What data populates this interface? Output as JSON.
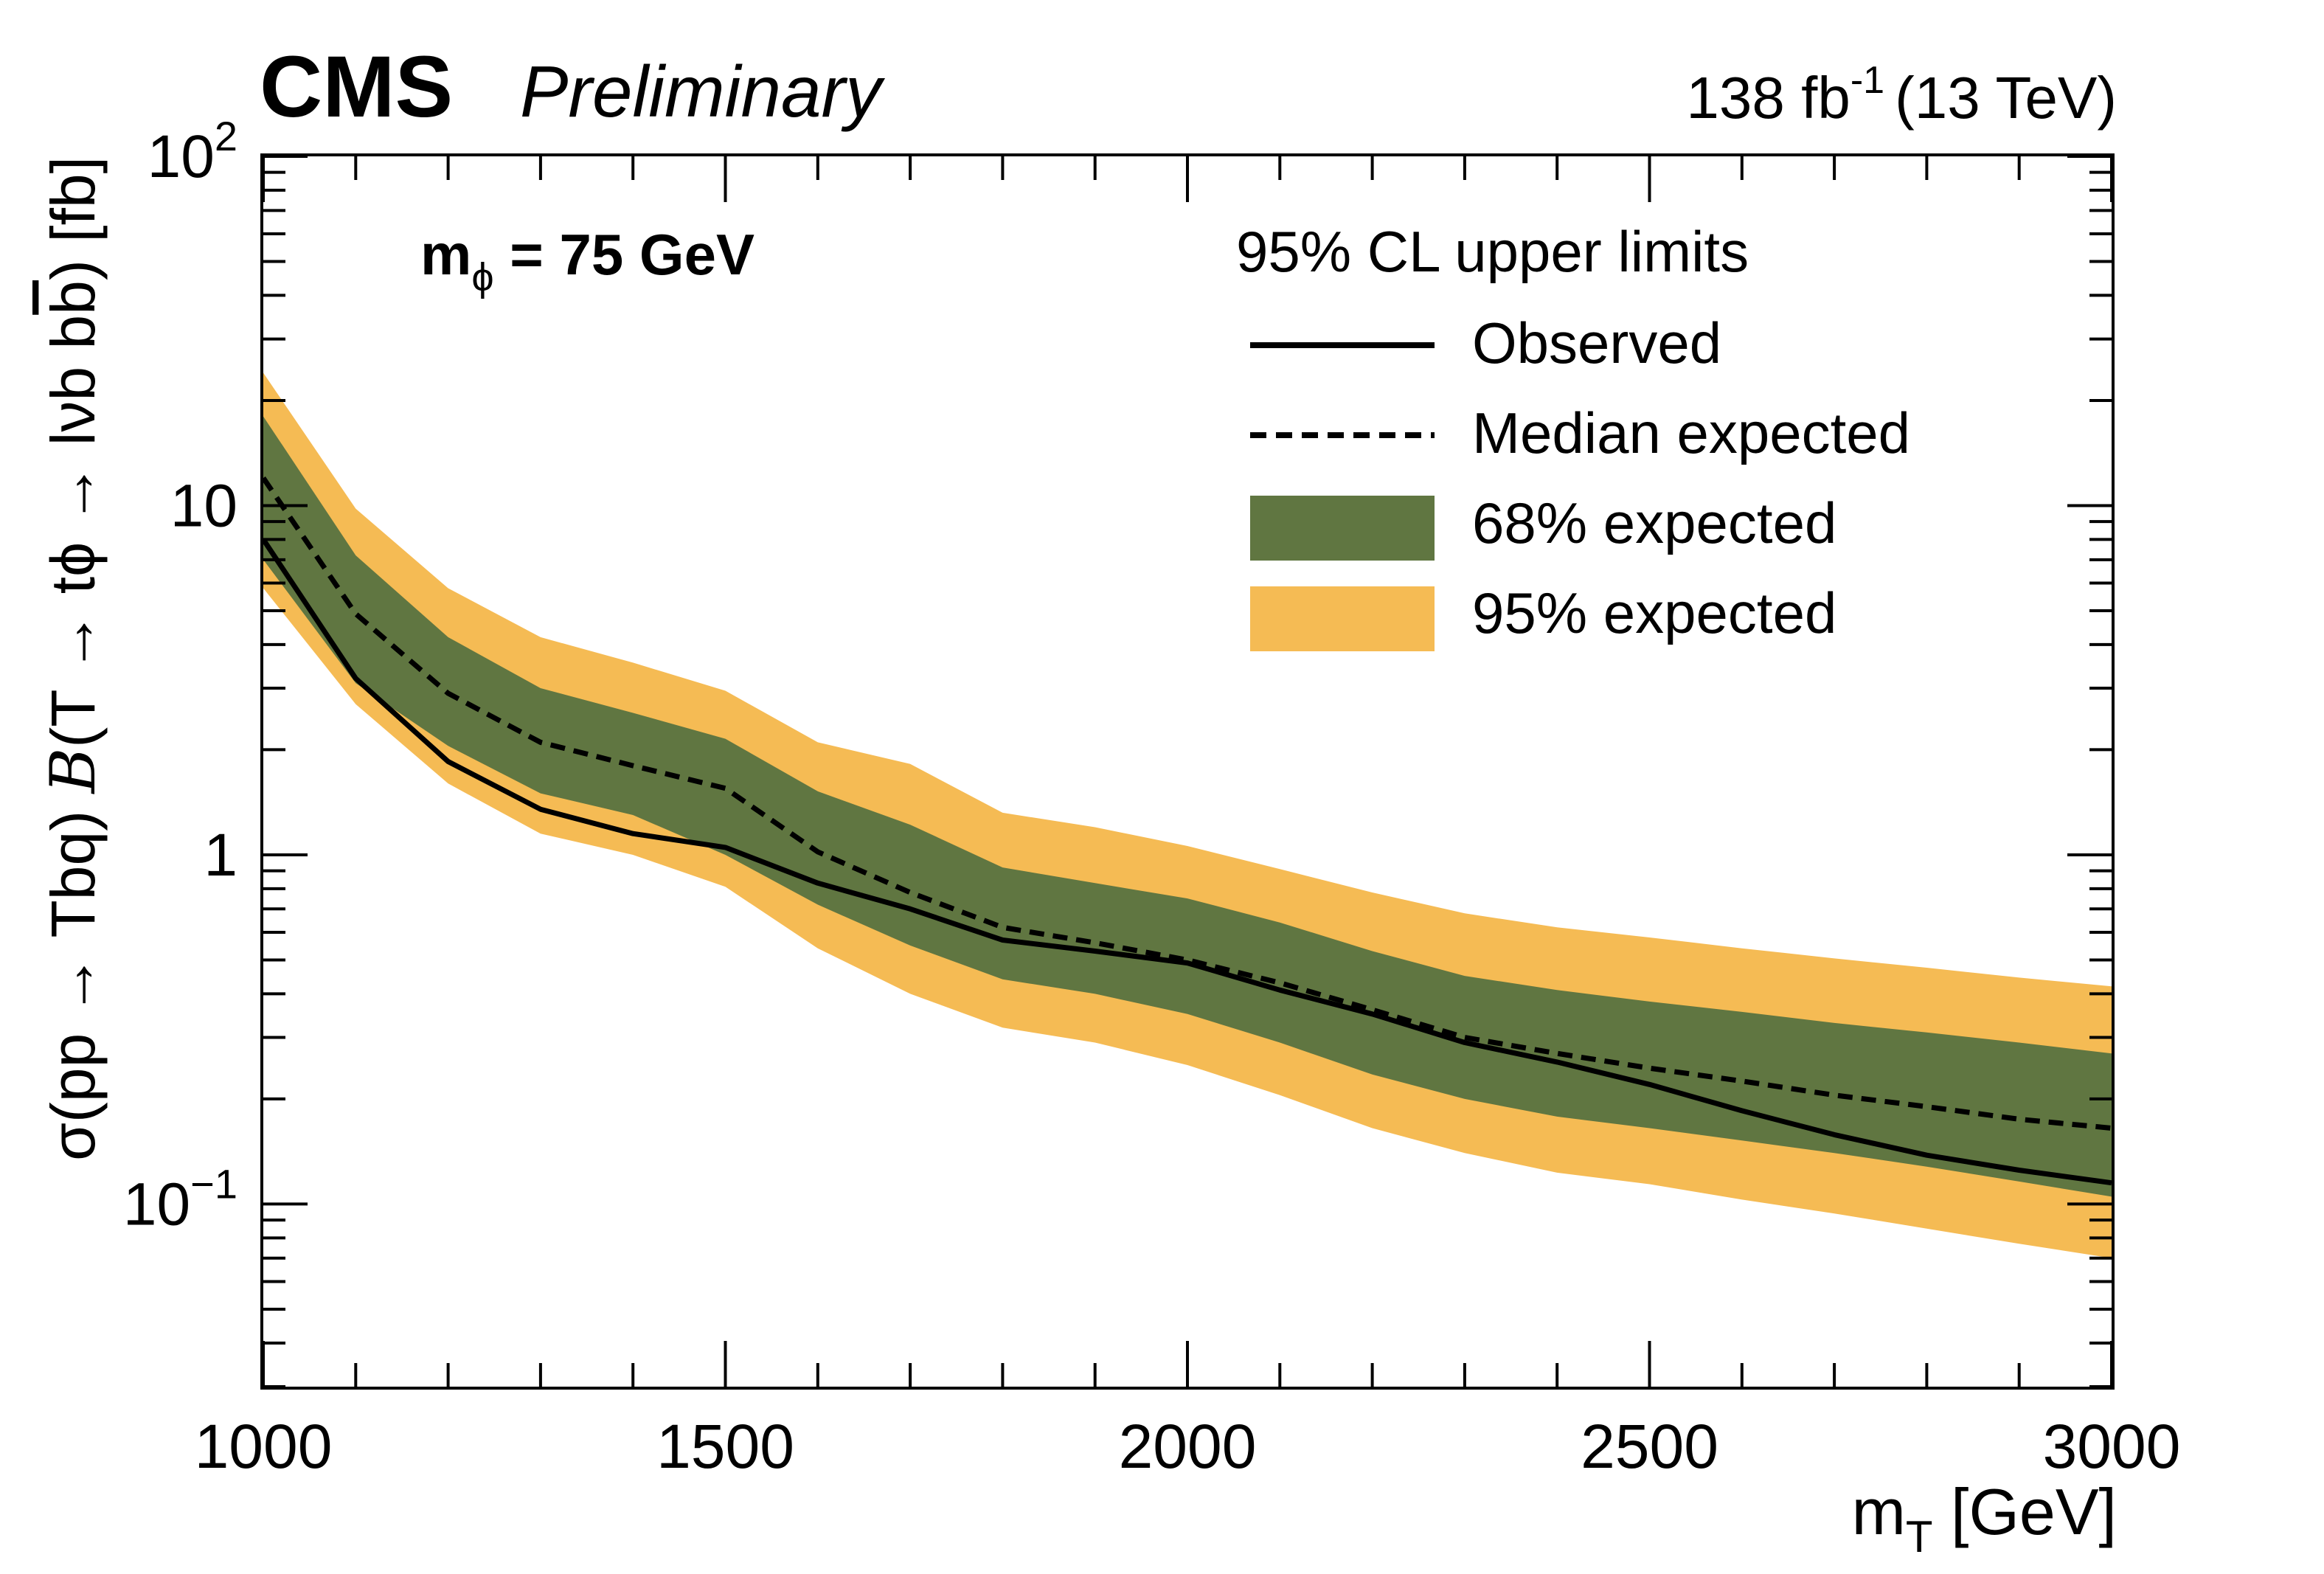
{
  "header": {
    "experiment": "CMS",
    "status": "Preliminary",
    "luminosity_value": "138 fb",
    "luminosity_exponent": "-1",
    "energy": "(13 TeV)"
  },
  "annotation": {
    "mass_symbol": "m",
    "mass_subscript": "ϕ",
    "mass_value": " = 75 GeV"
  },
  "colors": {
    "band_68": "#607641",
    "band_95": "#f5bb54",
    "line": "#000000"
  },
  "chart_data": {
    "type": "line",
    "x_axis": {
      "label_main": "m",
      "label_sub": "T",
      "label_unit": " [GeV]",
      "range": [
        1000,
        3000
      ],
      "ticks": [
        1000,
        1500,
        2000,
        2500,
        3000
      ],
      "tick_labels": [
        "1000",
        "1500",
        "2000",
        "2500",
        "3000"
      ]
    },
    "y_axis": {
      "label_part1": "σ(pp → Tbq) ",
      "label_script": "B",
      "label_part2": "(T → tϕ → lνb  b",
      "label_bbar": "b",
      "label_part3": ") [fb]",
      "scale": "log",
      "range": [
        0.03,
        100
      ],
      "ticks": [
        0.1,
        1,
        10,
        100
      ],
      "tick_labels": [
        {
          "base": "10",
          "exp": "−1"
        },
        {
          "base": "1",
          "exp": ""
        },
        {
          "base": "10",
          "exp": ""
        },
        {
          "base": "10",
          "exp": "2"
        }
      ]
    },
    "legend": {
      "title": "95% CL upper limits",
      "placement": "top-right",
      "entries": [
        "Observed",
        "Median expected",
        "68% expected",
        "95% expected"
      ]
    },
    "x": [
      1000,
      1100,
      1200,
      1300,
      1400,
      1500,
      1600,
      1700,
      1800,
      1900,
      2000,
      2100,
      2200,
      2300,
      2400,
      2500,
      2600,
      2700,
      2800,
      2900,
      3000
    ],
    "series": [
      {
        "name": "Observed",
        "style": "solid",
        "values": [
          8.0,
          3.2,
          1.85,
          1.35,
          1.15,
          1.05,
          0.83,
          0.7,
          0.57,
          0.53,
          0.49,
          0.41,
          0.35,
          0.29,
          0.255,
          0.22,
          0.185,
          0.158,
          0.138,
          0.125,
          0.115
        ]
      },
      {
        "name": "Median expected",
        "style": "dashed",
        "values": [
          12.0,
          4.9,
          2.9,
          2.1,
          1.8,
          1.55,
          1.02,
          0.78,
          0.62,
          0.56,
          0.5,
          0.43,
          0.36,
          0.3,
          0.27,
          0.245,
          0.225,
          0.205,
          0.19,
          0.175,
          0.165
        ]
      },
      {
        "name": "68% expected",
        "style": "band",
        "lower": [
          7.0,
          3.1,
          2.05,
          1.5,
          1.3,
          1.0,
          0.72,
          0.55,
          0.44,
          0.4,
          0.35,
          0.29,
          0.235,
          0.2,
          0.178,
          0.165,
          0.152,
          0.14,
          0.128,
          0.116,
          0.105
        ],
        "upper": [
          18.0,
          7.2,
          4.2,
          3.0,
          2.55,
          2.15,
          1.52,
          1.22,
          0.92,
          0.83,
          0.75,
          0.64,
          0.53,
          0.45,
          0.41,
          0.38,
          0.355,
          0.33,
          0.31,
          0.29,
          0.27
        ]
      },
      {
        "name": "95% expected",
        "style": "band",
        "lower": [
          5.8,
          2.7,
          1.6,
          1.15,
          1.0,
          0.81,
          0.54,
          0.4,
          0.32,
          0.29,
          0.25,
          0.205,
          0.165,
          0.14,
          0.123,
          0.114,
          0.103,
          0.094,
          0.085,
          0.077,
          0.07
        ],
        "upper": [
          24.0,
          9.8,
          5.8,
          4.2,
          3.55,
          2.95,
          2.1,
          1.82,
          1.32,
          1.2,
          1.06,
          0.91,
          0.78,
          0.68,
          0.62,
          0.58,
          0.54,
          0.505,
          0.475,
          0.445,
          0.42
        ]
      }
    ]
  }
}
